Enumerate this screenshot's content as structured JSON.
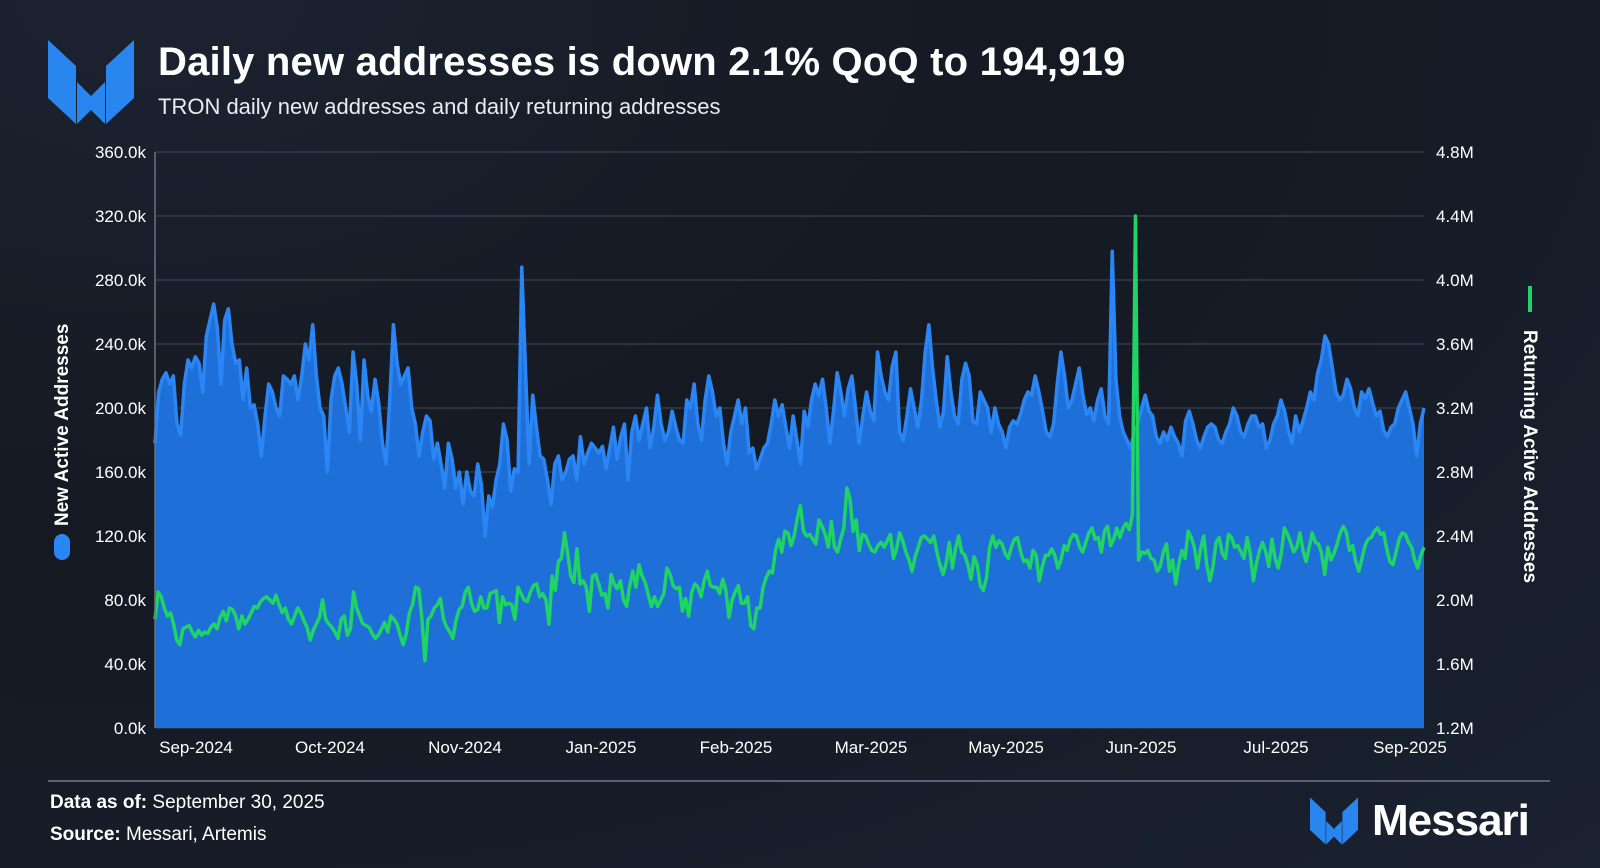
{
  "header": {
    "title": "Daily new addresses is down 2.1% QoQ to 194,919",
    "subtitle": "TRON daily new addresses and daily returning addresses"
  },
  "footer": {
    "data_as_of_label": "Data as of:",
    "data_as_of_value": "September 30, 2025",
    "source_label": "Source:",
    "source_value": "Messari, Artemis",
    "brand": "Messari"
  },
  "colors": {
    "new_fill": "#1f6fd8",
    "new_line": "#2b86f5",
    "returning_line": "#1fd364",
    "grid": "#3a414e"
  },
  "chart_data": {
    "type": "line",
    "title": "TRON daily new addresses and daily returning addresses",
    "xlabel": "",
    "ylabel": "New Active Addresses",
    "y2label": "Returning Active Addresses",
    "ylim": [
      0,
      360000
    ],
    "y2lim": [
      1200000,
      4800000
    ],
    "yticks": [
      "0.0k",
      "40.0k",
      "80.0k",
      "120.0k",
      "160.0k",
      "200.0k",
      "240.0k",
      "280.0k",
      "320.0k",
      "360.0k"
    ],
    "y2ticks": [
      "1.2M",
      "1.6M",
      "2.0M",
      "2.4M",
      "2.8M",
      "3.2M",
      "3.6M",
      "4.0M",
      "4.4M",
      "4.8M"
    ],
    "xticks": [
      "Sep-2024",
      "Oct-2024",
      "Nov-2024",
      "Jan-2025",
      "Feb-2025",
      "Mar-2025",
      "May-2025",
      "Jun-2025",
      "Jul-2025",
      "Sep-2025"
    ],
    "legend_position": "axis-titles",
    "series": [
      {
        "name": "New Active Addresses",
        "axis": "left",
        "style": "area",
        "values": [
          178000,
          210000,
          218000,
          222000,
          215000,
          220000,
          190000,
          183000,
          215000,
          230000,
          225000,
          232000,
          228000,
          210000,
          245000,
          255000,
          265000,
          250000,
          215000,
          255000,
          262000,
          240000,
          228000,
          230000,
          205000,
          225000,
          200000,
          202000,
          190000,
          170000,
          195000,
          215000,
          210000,
          200000,
          195000,
          220000,
          218000,
          215000,
          220000,
          205000,
          220000,
          240000,
          230000,
          252000,
          220000,
          200000,
          195000,
          160000,
          205000,
          220000,
          225000,
          215000,
          200000,
          185000,
          235000,
          215000,
          180000,
          230000,
          208000,
          198000,
          218000,
          203000,
          178000,
          165000,
          205000,
          252000,
          228000,
          215000,
          220000,
          225000,
          200000,
          190000,
          170000,
          185000,
          195000,
          192000,
          168000,
          178000,
          165000,
          150000,
          178000,
          168000,
          150000,
          160000,
          140000,
          160000,
          148000,
          145000,
          165000,
          152000,
          120000,
          145000,
          138000,
          155000,
          165000,
          190000,
          180000,
          148000,
          162000,
          160000,
          288000,
          225000,
          165000,
          208000,
          188000,
          170000,
          168000,
          155000,
          140000,
          165000,
          170000,
          155000,
          160000,
          168000,
          170000,
          155000,
          182000,
          165000,
          172000,
          178000,
          175000,
          172000,
          176000,
          162000,
          175000,
          188000,
          168000,
          182000,
          190000,
          155000,
          185000,
          195000,
          180000,
          190000,
          200000,
          175000,
          188000,
          208000,
          190000,
          180000,
          185000,
          198000,
          188000,
          180000,
          178000,
          205000,
          200000,
          215000,
          190000,
          180000,
          205000,
          220000,
          210000,
          195000,
          200000,
          178000,
          165000,
          185000,
          195000,
          205000,
          190000,
          200000,
          172000,
          175000,
          162000,
          168000,
          175000,
          178000,
          190000,
          205000,
          195000,
          202000,
          188000,
          175000,
          195000,
          180000,
          165000,
          198000,
          188000,
          205000,
          215000,
          208000,
          218000,
          200000,
          178000,
          198000,
          222000,
          210000,
          195000,
          212000,
          220000,
          200000,
          178000,
          195000,
          210000,
          198000,
          192000,
          235000,
          220000,
          210000,
          205000,
          226000,
          235000,
          185000,
          180000,
          195000,
          212000,
          200000,
          188000,
          205000,
          235000,
          252000,
          225000,
          205000,
          188000,
          198000,
          232000,
          210000,
          195000,
          190000,
          218000,
          228000,
          220000,
          192000,
          190000,
          210000,
          205000,
          200000,
          185000,
          200000,
          190000,
          185000,
          175000,
          188000,
          192000,
          190000,
          196000,
          205000,
          210000,
          208000,
          220000,
          210000,
          198000,
          185000,
          182000,
          190000,
          215000,
          235000,
          220000,
          200000,
          205000,
          215000,
          225000,
          208000,
          196000,
          200000,
          192000,
          205000,
          212000,
          195000,
          190000,
          298000,
          218000,
          195000,
          185000,
          180000,
          175000,
          185000,
          190000,
          200000,
          208000,
          198000,
          195000,
          182000,
          178000,
          185000,
          180000,
          188000,
          182000,
          178000,
          170000,
          192000,
          198000,
          190000,
          180000,
          175000,
          182000,
          188000,
          190000,
          188000,
          180000,
          178000,
          185000,
          190000,
          200000,
          195000,
          185000,
          182000,
          190000,
          195000,
          195000,
          188000,
          190000,
          175000,
          180000,
          190000,
          195000,
          205000,
          198000,
          186000,
          178000,
          195000,
          185000,
          192000,
          200000,
          210000,
          205000,
          222000,
          230000,
          245000,
          240000,
          225000,
          210000,
          205000,
          208000,
          218000,
          212000,
          200000,
          195000,
          210000,
          206000,
          212000,
          203000,
          195000,
          198000,
          186000,
          182000,
          188000,
          190000,
          200000,
          205000,
          210000,
          200000,
          190000,
          170000,
          190000,
          200000
        ]
      },
      {
        "name": "Returning Active Addresses",
        "axis": "right",
        "style": "line",
        "values": [
          1880000,
          2050000,
          2020000,
          1950000,
          1900000,
          1920000,
          1850000,
          1750000,
          1720000,
          1820000,
          1830000,
          1840000,
          1800000,
          1770000,
          1810000,
          1780000,
          1800000,
          1790000,
          1830000,
          1850000,
          1820000,
          1890000,
          1930000,
          1870000,
          1950000,
          1940000,
          1900000,
          1820000,
          1900000,
          1850000,
          1880000,
          1920000,
          1960000,
          1950000,
          1990000,
          2010000,
          2020000,
          2000000,
          1980000,
          2030000,
          1970000,
          1920000,
          1950000,
          1880000,
          1850000,
          1900000,
          1950000,
          1920000,
          1870000,
          1830000,
          1750000,
          1810000,
          1850000,
          1890000,
          2000000,
          1880000,
          1850000,
          1830000,
          1800000,
          1760000,
          1880000,
          1900000,
          1780000,
          1820000,
          2050000,
          1950000,
          1900000,
          1850000,
          1840000,
          1830000,
          1790000,
          1760000,
          1780000,
          1820000,
          1860000,
          1800000,
          1900000,
          1880000,
          1850000,
          1780000,
          1720000,
          1790000,
          1920000,
          1970000,
          2080000,
          2070000,
          1890000,
          1620000,
          1880000,
          1900000,
          1950000,
          1970000,
          2010000,
          1880000,
          1830000,
          1800000,
          1760000,
          1870000,
          1940000,
          1960000,
          2050000,
          2080000,
          1980000,
          1930000,
          1940000,
          2020000,
          1950000,
          1950000,
          2040000,
          2050000,
          2060000,
          1860000,
          2020000,
          1970000,
          1980000,
          1970000,
          1880000,
          2080000,
          2040000,
          2000000,
          1990000,
          2050000,
          2090000,
          2100000,
          2020000,
          2040000,
          2000000,
          1850000,
          2150000,
          2060000,
          2240000,
          2260000,
          2420000,
          2290000,
          2150000,
          2110000,
          2320000,
          2100000,
          2120000,
          2080000,
          1930000,
          2150000,
          2160000,
          2100000,
          2030000,
          2040000,
          1950000,
          2160000,
          2100000,
          2070000,
          2120000,
          2000000,
          1960000,
          2090000,
          2180000,
          2080000,
          2220000,
          2150000,
          2110000,
          2030000,
          1960000,
          2020000,
          1960000,
          2000000,
          2040000,
          2200000,
          2160000,
          2090000,
          2070000,
          2080000,
          1930000,
          2010000,
          1900000,
          2050000,
          2100000,
          2080000,
          2020000,
          2120000,
          2180000,
          2090000,
          2080000,
          2080000,
          2040000,
          2130000,
          2060000,
          1890000,
          2000000,
          2050000,
          2090000,
          1980000,
          1980000,
          2020000,
          1840000,
          1820000,
          1950000,
          1950000,
          2080000,
          2140000,
          2180000,
          2170000,
          2310000,
          2380000,
          2300000,
          2430000,
          2420000,
          2340000,
          2400000,
          2510000,
          2590000,
          2430000,
          2400000,
          2410000,
          2380000,
          2350000,
          2500000,
          2460000,
          2410000,
          2330000,
          2490000,
          2330000,
          2300000,
          2380000,
          2450000,
          2700000,
          2630000,
          2430000,
          2500000,
          2310000,
          2410000,
          2400000,
          2350000,
          2310000,
          2300000,
          2340000,
          2360000,
          2330000,
          2370000,
          2410000,
          2260000,
          2320000,
          2420000,
          2370000,
          2300000,
          2250000,
          2180000,
          2270000,
          2330000,
          2390000,
          2400000,
          2380000,
          2360000,
          2400000,
          2300000,
          2220000,
          2160000,
          2230000,
          2360000,
          2200000,
          2320000,
          2400000,
          2300000,
          2280000,
          2220000,
          2130000,
          2270000,
          2220000,
          2090000,
          2060000,
          2140000,
          2330000,
          2400000,
          2330000,
          2370000,
          2350000,
          2290000,
          2260000,
          2330000,
          2380000,
          2390000,
          2300000,
          2240000,
          2250000,
          2200000,
          2310000,
          2280000,
          2120000,
          2210000,
          2280000,
          2280000,
          2320000,
          2280000,
          2200000,
          2250000,
          2340000,
          2310000,
          2380000,
          2410000,
          2400000,
          2330000,
          2300000,
          2360000,
          2420000,
          2450000,
          2380000,
          2390000,
          2300000,
          2430000,
          2460000,
          2340000,
          2380000,
          2450000,
          2390000,
          2450000,
          2480000,
          2440000,
          2530000,
          4400000,
          2250000,
          2300000,
          2290000,
          2310000,
          2260000,
          2250000,
          2180000,
          2210000,
          2300000,
          2350000,
          2180000,
          2250000,
          2100000,
          2230000,
          2310000,
          2260000,
          2430000,
          2390000,
          2330000,
          2200000,
          2320000,
          2400000,
          2220000,
          2120000,
          2210000,
          2360000,
          2390000,
          2290000,
          2260000,
          2410000,
          2390000,
          2330000,
          2340000,
          2300000,
          2260000,
          2390000,
          2290000,
          2120000,
          2230000,
          2310000,
          2360000,
          2300000,
          2210000,
          2380000,
          2260000,
          2200000,
          2290000,
          2450000,
          2410000,
          2360000,
          2300000,
          2330000,
          2420000,
          2310000,
          2240000,
          2330000,
          2420000,
          2360000,
          2350000,
          2290000,
          2160000,
          2330000,
          2250000,
          2290000,
          2350000,
          2420000,
          2460000,
          2420000,
          2310000,
          2340000,
          2240000,
          2180000,
          2260000,
          2340000,
          2380000,
          2390000,
          2430000,
          2450000,
          2410000,
          2420000,
          2320000,
          2240000,
          2220000,
          2300000,
          2380000,
          2420000,
          2410000,
          2360000,
          2330000,
          2250000,
          2200000,
          2280000,
          2330000
        ]
      }
    ]
  }
}
